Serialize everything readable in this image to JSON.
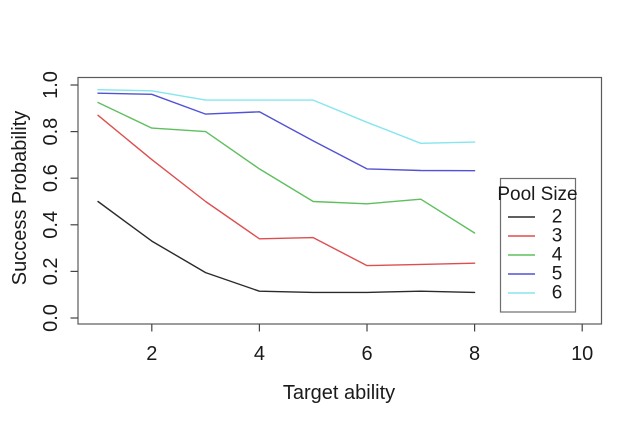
{
  "figure": {
    "background_color": "#ffffff",
    "plot_border_color": "#5a5a5a",
    "tick_color": "#444444",
    "text_color": "#1a1a1a"
  },
  "chart_data": {
    "type": "line",
    "title": "",
    "xlabel": "Target ability",
    "ylabel": "Success Probability",
    "x": [
      1,
      2,
      3,
      4,
      5,
      6,
      7,
      8
    ],
    "x_ticks": [
      "2",
      "4",
      "6",
      "8",
      "10"
    ],
    "x_tick_values": [
      2,
      4,
      6,
      8,
      10
    ],
    "y_ticks": [
      "0.0",
      "0.2",
      "0.4",
      "0.6",
      "0.8",
      "1.0"
    ],
    "y_tick_values": [
      0,
      0.2,
      0.4,
      0.6,
      0.8,
      1.0
    ],
    "xlim": [
      1,
      10
    ],
    "ylim": [
      0,
      1
    ],
    "grid": false,
    "legend_title": "Pool Size",
    "legend_position": "right-middle",
    "series": [
      {
        "name": "2",
        "color": "#2a2a2a",
        "values": [
          0.5,
          0.33,
          0.195,
          0.115,
          0.11,
          0.11,
          0.115,
          0.11
        ]
      },
      {
        "name": "3",
        "color": "#dd4f4f",
        "values": [
          0.87,
          0.68,
          0.5,
          0.34,
          0.345,
          0.225,
          0.23,
          0.235
        ]
      },
      {
        "name": "4",
        "color": "#5fbf5f",
        "values": [
          0.925,
          0.815,
          0.8,
          0.64,
          0.5,
          0.49,
          0.51,
          0.365
        ]
      },
      {
        "name": "5",
        "color": "#5252d4",
        "values": [
          0.965,
          0.96,
          0.875,
          0.885,
          0.76,
          0.64,
          0.633,
          0.632
        ]
      },
      {
        "name": "6",
        "color": "#85e6ee",
        "values": [
          0.98,
          0.975,
          0.935,
          0.935,
          0.935,
          0.84,
          0.75,
          0.755
        ]
      }
    ]
  }
}
